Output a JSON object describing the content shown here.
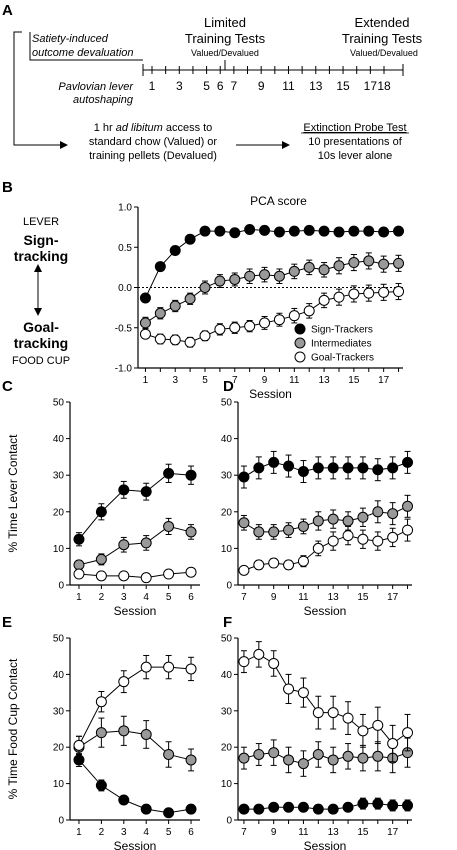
{
  "panel_a": {
    "letter": "A",
    "satiety_line1": "Satiety-induced",
    "satiety_line2": "outcome devaluation",
    "limited_line1": "Limited",
    "limited_line2": "Training Tests",
    "limited_sub": "Valued/Devalued",
    "extended_line1": "Extended",
    "extended_line2": "Training Tests",
    "extended_sub": "Valued/Devalued",
    "pav_line1": "Pavlovian lever",
    "pav_line2": "autoshaping",
    "session_numbers": [
      "1",
      "3",
      "5",
      "6",
      "7",
      "9",
      "11",
      "13",
      "15",
      "17",
      "18"
    ],
    "access_line1_pre": "1 hr ",
    "access_line1_ital": "ad libitum",
    "access_line1_post": " access to",
    "access_line2": "standard chow (Valued) or",
    "access_line3": "training pellets (Devalued)",
    "probe_title": "Extinction Probe Test",
    "probe_line2": "10 presentations of",
    "probe_line3": "10s lever alone"
  },
  "panel_b": {
    "letter": "B",
    "lever": "LEVER",
    "sign": "Sign-",
    "tracking": "tracking",
    "goal": "Goal-",
    "tracking2": "tracking",
    "food_cup": "FOOD CUP",
    "legend": [
      "Sign-Trackers",
      "Intermediates",
      "Goal-Trackers"
    ]
  },
  "colors": {
    "sign": "#000000",
    "inter": "#999999",
    "goal": "#ffffff"
  },
  "chart_data": [
    {
      "panel": "B",
      "type": "line",
      "title": "PCA score",
      "xlabel": "Session",
      "ylabel": "",
      "xlim": [
        0.5,
        18.3
      ],
      "ylim": [
        -1.0,
        1.0
      ],
      "yticks": [
        "1.0",
        "0.5",
        "0.0",
        "-0.5",
        "-1.0"
      ],
      "ytick_values": [
        1.0,
        0.5,
        0.0,
        -0.5,
        -1.0
      ],
      "xticks": [
        "1",
        "3",
        "5",
        "7",
        "9",
        "11",
        "13",
        "15",
        "17"
      ],
      "xtick_values": [
        1,
        3,
        5,
        7,
        9,
        11,
        13,
        15,
        17
      ],
      "zero_line": true,
      "x": [
        1,
        2,
        3,
        4,
        5,
        6,
        7,
        8,
        9,
        10,
        11,
        12,
        13,
        14,
        15,
        16,
        17,
        18
      ],
      "series": [
        {
          "name": "Sign-Trackers",
          "key": "sign",
          "values": [
            -0.13,
            0.26,
            0.46,
            0.6,
            0.7,
            0.7,
            0.68,
            0.72,
            0.71,
            0.69,
            0.7,
            0.71,
            0.7,
            0.69,
            0.7,
            0.7,
            0.69,
            0.7
          ],
          "err": [
            0.05,
            0.05,
            0.05,
            0.05,
            0.05,
            0.05,
            0.05,
            0.05,
            0.05,
            0.05,
            0.05,
            0.05,
            0.05,
            0.05,
            0.05,
            0.05,
            0.05,
            0.05
          ]
        },
        {
          "name": "Intermediates",
          "key": "inter",
          "values": [
            -0.44,
            -0.32,
            -0.23,
            -0.14,
            0.0,
            0.08,
            0.1,
            0.14,
            0.16,
            0.14,
            0.2,
            0.25,
            0.22,
            0.27,
            0.31,
            0.33,
            0.29,
            0.3
          ],
          "err": [
            0.07,
            0.07,
            0.07,
            0.07,
            0.08,
            0.08,
            0.08,
            0.09,
            0.09,
            0.09,
            0.09,
            0.09,
            0.09,
            0.1,
            0.1,
            0.1,
            0.1,
            0.1
          ]
        },
        {
          "name": "Goal-Trackers",
          "key": "goal",
          "values": [
            -0.58,
            -0.64,
            -0.65,
            -0.68,
            -0.6,
            -0.52,
            -0.5,
            -0.48,
            -0.44,
            -0.4,
            -0.35,
            -0.29,
            -0.16,
            -0.12,
            -0.08,
            -0.07,
            -0.06,
            -0.05
          ],
          "err": [
            0.05,
            0.06,
            0.06,
            0.06,
            0.06,
            0.07,
            0.07,
            0.07,
            0.08,
            0.08,
            0.09,
            0.09,
            0.09,
            0.1,
            0.1,
            0.1,
            0.1,
            0.1
          ]
        }
      ]
    },
    {
      "panel": "C",
      "type": "line",
      "title": "",
      "xlabel": "Session",
      "ylabel": "% Time Lever Contact",
      "xlim": [
        0.6,
        6.4
      ],
      "ylim": [
        0,
        50
      ],
      "yticks": [
        "50",
        "40",
        "30",
        "20",
        "10",
        "0"
      ],
      "ytick_values": [
        50,
        40,
        30,
        20,
        10,
        0
      ],
      "xticks": [
        "1",
        "2",
        "3",
        "4",
        "5",
        "6"
      ],
      "xtick_values": [
        1,
        2,
        3,
        4,
        5,
        6
      ],
      "x": [
        1,
        2,
        3,
        4,
        5,
        6
      ],
      "series": [
        {
          "name": "Sign-Trackers",
          "key": "sign",
          "values": [
            12.5,
            20.0,
            26.0,
            25.5,
            30.5,
            30.0
          ],
          "err": [
            1.8,
            2.2,
            2.3,
            2.3,
            2.5,
            2.5
          ]
        },
        {
          "name": "Intermediates",
          "key": "inter",
          "values": [
            5.5,
            7.0,
            11.0,
            11.5,
            16.0,
            14.5
          ],
          "err": [
            1.2,
            1.5,
            2.0,
            2.0,
            2.2,
            2.0
          ]
        },
        {
          "name": "Goal-Trackers",
          "key": "goal",
          "values": [
            3.0,
            2.5,
            2.5,
            2.0,
            3.0,
            3.5
          ],
          "err": [
            0.6,
            0.6,
            0.6,
            0.6,
            0.6,
            0.6
          ]
        }
      ]
    },
    {
      "panel": "D",
      "type": "line",
      "title": "",
      "xlabel": "Session",
      "ylabel": "",
      "xlim": [
        6.6,
        18.3
      ],
      "ylim": [
        0,
        50
      ],
      "yticks": [
        "50",
        "40",
        "30",
        "20",
        "10",
        "0"
      ],
      "ytick_values": [
        50,
        40,
        30,
        20,
        10,
        0
      ],
      "xticks": [
        "7",
        "9",
        "11",
        "13",
        "15",
        "17"
      ],
      "xtick_values": [
        7,
        9,
        11,
        13,
        15,
        17
      ],
      "x": [
        7,
        8,
        9,
        10,
        11,
        12,
        13,
        14,
        15,
        16,
        17,
        18
      ],
      "series": [
        {
          "name": "Sign-Trackers",
          "key": "sign",
          "values": [
            29.5,
            32.0,
            33.5,
            32.5,
            31.0,
            32.0,
            32.0,
            32.0,
            32.0,
            31.5,
            32.0,
            33.5
          ],
          "err": [
            3.0,
            3.0,
            3.0,
            3.0,
            3.0,
            3.0,
            3.0,
            3.0,
            3.0,
            3.0,
            3.0,
            3.0
          ]
        },
        {
          "name": "Intermediates",
          "key": "inter",
          "values": [
            17.0,
            14.5,
            14.5,
            15.0,
            16.0,
            17.5,
            18.0,
            17.5,
            18.5,
            20.0,
            19.5,
            21.5
          ],
          "err": [
            2.0,
            2.0,
            2.0,
            2.0,
            2.0,
            2.5,
            2.5,
            2.5,
            2.5,
            3.0,
            3.0,
            3.0
          ]
        },
        {
          "name": "Goal-Trackers",
          "key": "goal",
          "values": [
            4.0,
            5.5,
            6.0,
            5.5,
            6.5,
            10.0,
            12.0,
            13.5,
            12.5,
            12.0,
            13.0,
            15.0
          ],
          "err": [
            1.0,
            1.2,
            1.2,
            1.2,
            1.5,
            2.0,
            2.5,
            2.5,
            2.5,
            2.5,
            2.5,
            3.0
          ]
        }
      ]
    },
    {
      "panel": "E",
      "type": "line",
      "title": "",
      "xlabel": "Session",
      "ylabel": "% Time Food Cup Contact",
      "xlim": [
        0.6,
        6.4
      ],
      "ylim": [
        0,
        50
      ],
      "yticks": [
        "50",
        "40",
        "30",
        "20",
        "10",
        "0"
      ],
      "ytick_values": [
        50,
        40,
        30,
        20,
        10,
        0
      ],
      "xticks": [
        "1",
        "2",
        "3",
        "4",
        "5",
        "6"
      ],
      "xtick_values": [
        1,
        2,
        3,
        4,
        5,
        6
      ],
      "x": [
        1,
        2,
        3,
        4,
        5,
        6
      ],
      "series": [
        {
          "name": "Sign-Trackers",
          "key": "sign",
          "values": [
            16.5,
            9.5,
            5.5,
            3.0,
            2.0,
            3.0
          ],
          "err": [
            1.8,
            1.5,
            1.0,
            0.8,
            0.6,
            0.6
          ]
        },
        {
          "name": "Intermediates",
          "key": "inter",
          "values": [
            20.0,
            24.0,
            24.5,
            23.5,
            18.0,
            16.5
          ],
          "err": [
            3.0,
            4.0,
            4.0,
            3.8,
            3.5,
            3.0
          ]
        },
        {
          "name": "Goal-Trackers",
          "key": "goal",
          "values": [
            20.5,
            32.5,
            38.0,
            42.0,
            42.0,
            41.5
          ],
          "err": [
            2.5,
            2.8,
            3.0,
            3.2,
            3.2,
            3.2
          ]
        }
      ]
    },
    {
      "panel": "F",
      "type": "line",
      "title": "",
      "xlabel": "Session",
      "ylabel": "",
      "xlim": [
        6.6,
        18.3
      ],
      "ylim": [
        0,
        50
      ],
      "yticks": [
        "50",
        "40",
        "30",
        "20",
        "10",
        "0"
      ],
      "ytick_values": [
        50,
        40,
        30,
        20,
        10,
        0
      ],
      "xticks": [
        "7",
        "9",
        "11",
        "13",
        "15",
        "17"
      ],
      "xtick_values": [
        7,
        9,
        11,
        13,
        15,
        17
      ],
      "x": [
        7,
        8,
        9,
        10,
        11,
        12,
        13,
        14,
        15,
        16,
        17,
        18
      ],
      "series": [
        {
          "name": "Sign-Trackers",
          "key": "sign",
          "values": [
            3.0,
            3.0,
            3.5,
            3.5,
            3.5,
            3.0,
            3.0,
            3.5,
            4.5,
            4.5,
            4.0,
            4.0
          ],
          "err": [
            1.0,
            1.0,
            1.0,
            1.0,
            1.0,
            1.0,
            1.0,
            1.0,
            1.5,
            1.5,
            1.5,
            1.5
          ]
        },
        {
          "name": "Intermediates",
          "key": "inter",
          "values": [
            17.0,
            18.0,
            18.5,
            16.5,
            15.5,
            18.0,
            16.5,
            17.5,
            17.0,
            17.5,
            17.0,
            18.5
          ],
          "err": [
            3.0,
            3.0,
            3.5,
            3.5,
            3.5,
            3.5,
            3.5,
            3.5,
            3.5,
            4.0,
            4.0,
            4.0
          ]
        },
        {
          "name": "Goal-Trackers",
          "key": "goal",
          "values": [
            43.5,
            45.5,
            43.0,
            36.0,
            35.0,
            29.5,
            29.5,
            28.0,
            24.5,
            26.0,
            21.0,
            24.0
          ],
          "err": [
            3.0,
            3.5,
            3.5,
            4.0,
            4.0,
            4.5,
            4.5,
            4.5,
            4.5,
            5.0,
            5.0,
            5.0
          ]
        }
      ]
    }
  ]
}
